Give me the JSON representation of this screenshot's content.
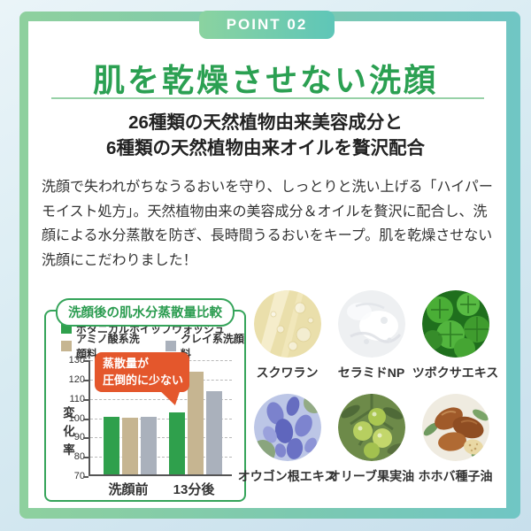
{
  "badge": {
    "label": "POINT 02"
  },
  "heading": {
    "title": "肌を乾燥させない洗顔"
  },
  "subheading": {
    "line1": "26種類の天然植物由来美容成分と",
    "line2": "6種類の天然植物由来オイルを贅沢配合"
  },
  "body": {
    "text": "洗顔で失われがちなうるおいを守り、しっとりと洗い上げる「ハイパーモイスト処方」。天然植物由来の美容成分＆オイルを贅沢に配合し、洗顔による水分蒸散を防ぎ、長時間うるおいをキープ。肌を乾燥させない洗顔にこだわりました！"
  },
  "chart_data": {
    "type": "bar",
    "title": "洗顔後の肌水分蒸散量比較",
    "categories": [
      "洗顔前",
      "13分後"
    ],
    "series": [
      {
        "name": "ボタニカルホイップウォッシュ",
        "color": "#2fa04c",
        "values": [
          100,
          102
        ]
      },
      {
        "name": "アミノ酸系洗顔料",
        "color": "#c6b591",
        "values": [
          99.5,
          123
        ]
      },
      {
        "name": "クレイ系洗顔料",
        "color": "#aab1bc",
        "values": [
          100,
          113
        ]
      }
    ],
    "ylabel": "変化率",
    "ylim": [
      70,
      130
    ],
    "yticks": [
      70,
      80,
      90,
      100,
      110,
      120,
      130
    ],
    "grid": true,
    "legend_position": "top",
    "annotation": {
      "line1": "蒸散量が",
      "line2": "圧倒的に少ない",
      "color": "#e4572c"
    }
  },
  "ingredients": {
    "items": [
      {
        "label": "スクワラン"
      },
      {
        "label": "セラミドNP"
      },
      {
        "label": "ツボクサエキス"
      },
      {
        "label": "オウゴン根エキス"
      },
      {
        "label": "オリーブ果実油"
      },
      {
        "label": "ホホバ種子油"
      }
    ]
  },
  "colors": {
    "accent_green": "#2ba052",
    "frame_green": "#8ed09e",
    "frame_teal": "#70c6c4",
    "underline_green": "#97d1a7",
    "chart_border_green": "#35a45a",
    "callout_orange": "#e4572c",
    "background_blue": "#d8ebf2"
  }
}
